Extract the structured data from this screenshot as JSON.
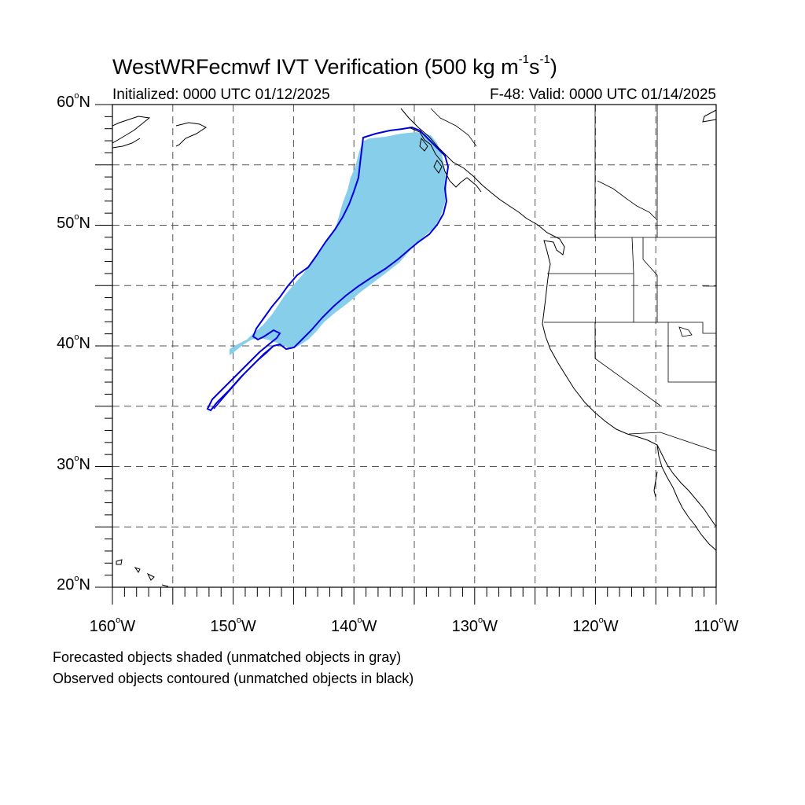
{
  "header": {
    "title_main": "WestWRFecmwf IVT Verification (500 kg m",
    "title_sup1": "-1",
    "title_mid": "s",
    "title_sup2": "-1",
    "title_end": ")",
    "initialized": "Initialized: 0000 UTC 01/12/2025",
    "valid": "F-48: Valid: 0000 UTC 01/14/2025"
  },
  "map": {
    "lat_range": [
      20,
      60
    ],
    "lon_range": [
      -160,
      -110
    ],
    "lat_labels": [
      {
        "value": 60,
        "text": "60",
        "suffix": "N"
      },
      {
        "value": 50,
        "text": "50",
        "suffix": "N"
      },
      {
        "value": 40,
        "text": "40",
        "suffix": "N"
      },
      {
        "value": 30,
        "text": "30",
        "suffix": "N"
      },
      {
        "value": 20,
        "text": "20",
        "suffix": "N"
      }
    ],
    "lon_labels": [
      {
        "value": -160,
        "text": "160",
        "suffix": "W"
      },
      {
        "value": -150,
        "text": "150",
        "suffix": "W"
      },
      {
        "value": -140,
        "text": "140",
        "suffix": "W"
      },
      {
        "value": -130,
        "text": "130",
        "suffix": "W"
      },
      {
        "value": -120,
        "text": "120",
        "suffix": "W"
      },
      {
        "value": -110,
        "text": "110",
        "suffix": "W"
      }
    ],
    "degree_symbol": "o",
    "forecast_fill_color": "#87ceeb",
    "observed_contour_color": "#0000dd",
    "grid_style": "dashed"
  },
  "legend": {
    "line1": "Forecasted objects shaded (unmatched objects in gray)",
    "line2": "Observed objects contoured (unmatched objects in black)"
  }
}
